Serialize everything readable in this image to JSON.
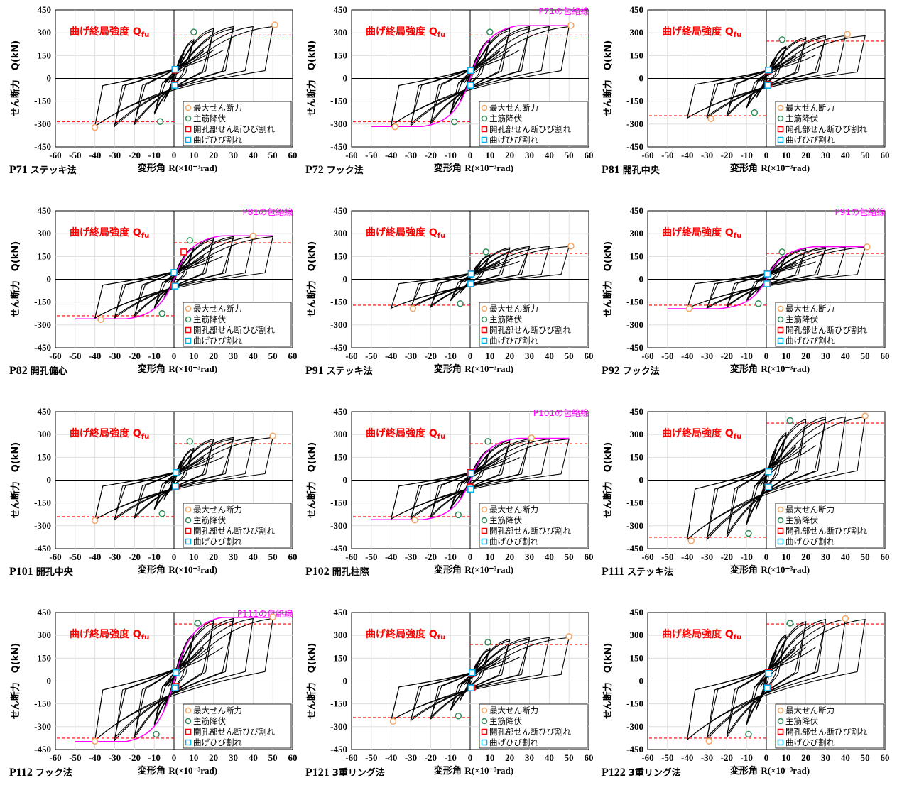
{
  "chart_data": {
    "shared": {
      "type": "line",
      "xlabel_prefix": "変形角",
      "xlabel_unit": "R(×10⁻³rad)",
      "ylabel": "せん断力　Q(kN)",
      "xlim": [
        -60,
        60
      ],
      "ylim": [
        -450,
        450
      ],
      "xticks": [
        -60,
        -50,
        -40,
        -30,
        -20,
        -10,
        0,
        10,
        20,
        30,
        40,
        50,
        60
      ],
      "yticks": [
        450,
        300,
        150,
        0,
        -150,
        -300,
        -450
      ],
      "grid": true,
      "qfu_label": "曲げ終局強度 Q",
      "qfu_sub": "fu",
      "legend_position": "lower-right",
      "legend": [
        "最大せん断力",
        "主筋降伏",
        "開孔部せん断ひび割れ",
        "曲げひび割れ"
      ],
      "colors": {
        "hysteresis": "#000000",
        "qfu": "#ff0000",
        "envelope": "#ff00ff",
        "max_marker": "#f4a460",
        "yield_marker": "#2e8b57",
        "opening_crack": "#ff0000",
        "flex_crack": "#00b0f0"
      }
    },
    "panels": [
      {
        "id": "P71",
        "method": "ステッキ法",
        "qfu": 285,
        "pos_qfu": 285,
        "neg_qfu": -285,
        "neg_left": true,
        "max": [
          [
            51,
            352
          ],
          [
            -40,
            -322
          ]
        ],
        "yield": [
          [
            10,
            305
          ],
          [
            -7,
            -283
          ]
        ],
        "open_crack": [
          [
            0.5,
            55
          ],
          [
            0.5,
            -40
          ]
        ],
        "flex_crack": [
          [
            0.5,
            60
          ],
          [
            0.3,
            -45
          ]
        ],
        "envelope": null,
        "pk": 340,
        "nk": 315
      },
      {
        "id": "P72",
        "method": "フック法",
        "qfu": 285,
        "pos_qfu": 285,
        "neg_qfu": -285,
        "neg_left": true,
        "max": [
          [
            51,
            348
          ],
          [
            -38,
            -318
          ]
        ],
        "yield": [
          [
            10,
            305
          ],
          [
            -8,
            -285
          ]
        ],
        "open_crack": [
          [
            0.3,
            50
          ],
          [
            0.3,
            -42
          ]
        ],
        "flex_crack": [
          [
            0.3,
            52
          ],
          [
            0.2,
            -45
          ]
        ],
        "envelope": "P71の包絡線",
        "pk": 340,
        "nk": 310
      },
      {
        "id": "P81",
        "method": "開孔中央",
        "qfu": 245,
        "pos_qfu": 245,
        "neg_qfu": -245,
        "neg_left": true,
        "max": [
          [
            41,
            290
          ],
          [
            -28,
            -265
          ]
        ],
        "yield": [
          [
            8,
            255
          ],
          [
            -6,
            -225
          ]
        ],
        "open_crack": [
          [
            1,
            50
          ],
          [
            1,
            -40
          ]
        ],
        "flex_crack": [
          [
            1,
            55
          ],
          [
            0.8,
            -45
          ]
        ],
        "envelope": null,
        "pk": 280,
        "nk": 260
      },
      {
        "id": "P82",
        "method": "開孔偏心",
        "qfu": 240,
        "pos_qfu": 240,
        "neg_qfu": -240,
        "neg_left": true,
        "max": [
          [
            40,
            285
          ],
          [
            -37,
            -265
          ]
        ],
        "yield": [
          [
            8,
            255
          ],
          [
            -6,
            -225
          ]
        ],
        "open_crack": [
          [
            5,
            180
          ],
          [
            0,
            -40
          ]
        ],
        "flex_crack": [
          [
            0,
            45
          ],
          [
            0.5,
            -45
          ]
        ],
        "envelope": "P81の包絡線",
        "pk": 280,
        "nk": 255
      },
      {
        "id": "P91",
        "method": "ステッキ法",
        "qfu": 170,
        "pos_qfu": 170,
        "neg_qfu": -170,
        "neg_left": true,
        "max": [
          [
            51,
            218
          ],
          [
            -29,
            -192
          ]
        ],
        "yield": [
          [
            8,
            180
          ],
          [
            -5,
            -160
          ]
        ],
        "open_crack": [
          [
            0.5,
            40
          ],
          [
            0.5,
            -30
          ]
        ],
        "flex_crack": [
          [
            0.5,
            35
          ],
          [
            0.3,
            -30
          ]
        ],
        "envelope": null,
        "pk": 215,
        "nk": 190
      },
      {
        "id": "P92",
        "method": "フック法",
        "qfu": 170,
        "pos_qfu": 170,
        "neg_qfu": -170,
        "neg_left": true,
        "max": [
          [
            51,
            213
          ],
          [
            -39,
            -192
          ]
        ],
        "yield": [
          [
            8,
            180
          ],
          [
            -4,
            -160
          ]
        ],
        "open_crack": [
          [
            0.5,
            40
          ],
          [
            0.5,
            -30
          ]
        ],
        "flex_crack": [
          [
            0.5,
            35
          ],
          [
            0.3,
            -30
          ]
        ],
        "envelope": "P91の包絡線",
        "pk": 210,
        "nk": 190
      },
      {
        "id": "P101",
        "method": "開孔中央",
        "qfu": 240,
        "pos_qfu": 240,
        "neg_qfu": -240,
        "neg_left": true,
        "max": [
          [
            50,
            290
          ],
          [
            -40,
            -265
          ]
        ],
        "yield": [
          [
            8,
            255
          ],
          [
            -6,
            -220
          ]
        ],
        "open_crack": [
          [
            1,
            50
          ],
          [
            1,
            -45
          ]
        ],
        "flex_crack": [
          [
            1,
            50
          ],
          [
            0.8,
            -40
          ]
        ],
        "envelope": null,
        "pk": 280,
        "nk": 260
      },
      {
        "id": "P102",
        "method": "開孔柱際",
        "qfu": 240,
        "pos_qfu": 240,
        "neg_qfu": -240,
        "neg_left": true,
        "max": [
          [
            31,
            278
          ],
          [
            -28,
            -262
          ]
        ],
        "yield": [
          [
            9,
            255
          ],
          [
            -6,
            -228
          ]
        ],
        "open_crack": [
          [
            0,
            50
          ],
          [
            0,
            -45
          ]
        ],
        "flex_crack": [
          [
            0.5,
            45
          ],
          [
            0.3,
            -60
          ]
        ],
        "envelope": "P101の包絡線",
        "pk": 270,
        "nk": 255
      },
      {
        "id": "P111",
        "method": "ステッキ法",
        "qfu": 375,
        "pos_qfu": 375,
        "neg_qfu": -375,
        "neg_left": true,
        "max": [
          [
            50,
            422
          ],
          [
            -38,
            -398
          ]
        ],
        "yield": [
          [
            12,
            392
          ],
          [
            -9,
            -350
          ]
        ],
        "open_crack": [
          [
            1,
            60
          ],
          [
            1,
            -40
          ]
        ],
        "flex_crack": [
          [
            1,
            55
          ],
          [
            1,
            -45
          ]
        ],
        "envelope": null,
        "pk": 415,
        "nk": 390
      },
      {
        "id": "P112",
        "method": "フック法",
        "qfu": 375,
        "pos_qfu": 375,
        "neg_qfu": -375,
        "neg_left": true,
        "max": [
          [
            50,
            420
          ],
          [
            -40,
            -395
          ]
        ],
        "yield": [
          [
            12,
            380
          ],
          [
            -9,
            -350
          ]
        ],
        "open_crack": [
          [
            1,
            60
          ],
          [
            1,
            -35
          ]
        ],
        "flex_crack": [
          [
            1,
            55
          ],
          [
            0.5,
            -45
          ]
        ],
        "envelope": "P111の包絡線",
        "pk": 410,
        "nk": 390
      },
      {
        "id": "P121",
        "method": "3重リング法",
        "qfu": 240,
        "pos_qfu": 240,
        "neg_qfu": -240,
        "neg_left": true,
        "max": [
          [
            50,
            292
          ],
          [
            -39,
            -265
          ]
        ],
        "yield": [
          [
            9,
            255
          ],
          [
            -6,
            -230
          ]
        ],
        "open_crack": [
          [
            1,
            50
          ],
          [
            1,
            -45
          ]
        ],
        "flex_crack": [
          [
            1,
            55
          ],
          [
            0.5,
            -45
          ]
        ],
        "envelope": null,
        "pk": 285,
        "nk": 260
      },
      {
        "id": "P122",
        "method": "3重リング法",
        "qfu": 375,
        "pos_qfu": 375,
        "neg_qfu": -375,
        "neg_left": true,
        "max": [
          [
            40,
            410
          ],
          [
            -29,
            -395
          ]
        ],
        "yield": [
          [
            12,
            380
          ],
          [
            -9,
            -350
          ]
        ],
        "open_crack": [
          [
            1,
            55
          ],
          [
            1,
            -40
          ]
        ],
        "flex_crack": [
          [
            1,
            50
          ],
          [
            0.5,
            -45
          ]
        ],
        "envelope": null,
        "pk": 405,
        "nk": 385
      }
    ]
  }
}
